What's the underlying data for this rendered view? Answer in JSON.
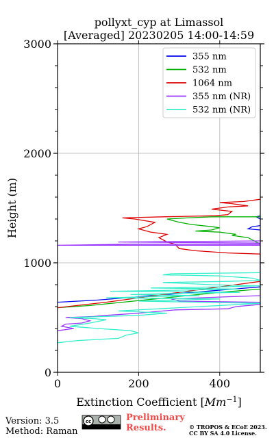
{
  "chart_data": {
    "type": "line",
    "title": "pollyxt_cyp at Limassol",
    "subtitle": "[Averaged] 20230205 14:00-14:59",
    "xlabel_base": "Extinction Coefficient [",
    "xlabel_unit_base": "Mm",
    "xlabel_unit_exp": "−1",
    "xlabel_close": "]",
    "ylabel": "Height (m)",
    "xlim": [
      0,
      500
    ],
    "ylim": [
      0,
      3000
    ],
    "x_ticks": [
      0,
      200,
      400
    ],
    "y_ticks": [
      0,
      1000,
      2000,
      3000
    ],
    "grid": true,
    "legend_position": "top-right",
    "series": [
      {
        "name": "355 nm",
        "color": "#0000ee",
        "points": [
          [
            0,
            640
          ],
          [
            100,
            660
          ],
          [
            200,
            690
          ],
          [
            300,
            720
          ],
          [
            400,
            750
          ],
          [
            500,
            780
          ],
          [
            500,
            1300
          ],
          [
            470,
            1310
          ],
          [
            480,
            1330
          ],
          [
            500,
            1340
          ],
          [
            500,
            1400
          ],
          [
            490,
            1420
          ],
          [
            500,
            1430
          ]
        ]
      },
      {
        "name": "532 nm",
        "color": "#00b000",
        "points": [
          [
            0,
            590
          ],
          [
            80,
            610
          ],
          [
            160,
            640
          ],
          [
            240,
            670
          ],
          [
            320,
            700
          ],
          [
            400,
            730
          ],
          [
            500,
            760
          ],
          [
            500,
            1170
          ],
          [
            470,
            1230
          ],
          [
            430,
            1250
          ],
          [
            440,
            1260
          ],
          [
            400,
            1280
          ],
          [
            340,
            1290
          ],
          [
            380,
            1300
          ],
          [
            400,
            1320
          ],
          [
            380,
            1330
          ],
          [
            330,
            1350
          ],
          [
            300,
            1370
          ],
          [
            270,
            1400
          ],
          [
            320,
            1410
          ],
          [
            380,
            1420
          ],
          [
            500,
            1420
          ]
        ]
      },
      {
        "name": "1064 nm",
        "color": "#dd0000",
        "points": [
          [
            0,
            590
          ],
          [
            120,
            640
          ],
          [
            240,
            700
          ],
          [
            360,
            760
          ],
          [
            440,
            800
          ],
          [
            500,
            830
          ],
          [
            500,
            880
          ],
          [
            500,
            1080
          ],
          [
            420,
            1090
          ],
          [
            340,
            1110
          ],
          [
            300,
            1130
          ],
          [
            290,
            1170
          ],
          [
            270,
            1190
          ],
          [
            250,
            1230
          ],
          [
            270,
            1260
          ],
          [
            230,
            1280
          ],
          [
            200,
            1310
          ],
          [
            220,
            1330
          ],
          [
            240,
            1370
          ],
          [
            190,
            1400
          ],
          [
            160,
            1410
          ],
          [
            260,
            1420
          ],
          [
            390,
            1430
          ],
          [
            420,
            1440
          ],
          [
            430,
            1470
          ],
          [
            380,
            1490
          ],
          [
            420,
            1510
          ],
          [
            470,
            1520
          ],
          [
            430,
            1540
          ],
          [
            400,
            1550
          ],
          [
            460,
            1560
          ],
          [
            500,
            1580
          ]
        ]
      },
      {
        "name": "355 nm (NR)",
        "color": "#9933ff",
        "points": [
          [
            0,
            380
          ],
          [
            40,
            400
          ],
          [
            10,
            420
          ],
          [
            20,
            440
          ],
          [
            60,
            450
          ],
          [
            80,
            470
          ],
          [
            60,
            490
          ],
          [
            20,
            500
          ],
          [
            90,
            510
          ],
          [
            120,
            520
          ],
          [
            200,
            540
          ],
          [
            260,
            560
          ],
          [
            290,
            570
          ],
          [
            420,
            580
          ],
          [
            440,
            600
          ],
          [
            500,
            620
          ],
          [
            500,
            640
          ],
          [
            300,
            650
          ],
          [
            280,
            670
          ],
          [
            420,
            690
          ],
          [
            500,
            700
          ],
          [
            500,
            1160
          ],
          [
            0,
            1160
          ],
          [
            180,
            1170
          ],
          [
            500,
            1170
          ],
          [
            500,
            1180
          ],
          [
            150,
            1190
          ],
          [
            500,
            1200
          ]
        ]
      },
      {
        "name": "532 nm (NR)",
        "color": "#33eecc",
        "points": [
          [
            0,
            270
          ],
          [
            50,
            290
          ],
          [
            100,
            300
          ],
          [
            150,
            310
          ],
          [
            170,
            340
          ],
          [
            200,
            360
          ],
          [
            180,
            380
          ],
          [
            100,
            400
          ],
          [
            30,
            420
          ],
          [
            80,
            450
          ],
          [
            120,
            480
          ],
          [
            90,
            490
          ],
          [
            30,
            500
          ],
          [
            120,
            510
          ],
          [
            200,
            520
          ],
          [
            270,
            540
          ],
          [
            150,
            560
          ],
          [
            250,
            580
          ],
          [
            350,
            600
          ],
          [
            450,
            620
          ],
          [
            500,
            630
          ],
          [
            350,
            640
          ],
          [
            200,
            650
          ],
          [
            300,
            660
          ],
          [
            400,
            670
          ],
          [
            120,
            680
          ],
          [
            220,
            690
          ],
          [
            350,
            700
          ],
          [
            180,
            710
          ],
          [
            280,
            720
          ],
          [
            450,
            730
          ],
          [
            130,
            740
          ],
          [
            300,
            750
          ],
          [
            450,
            760
          ],
          [
            230,
            770
          ],
          [
            400,
            780
          ],
          [
            500,
            790
          ],
          [
            380,
            800
          ],
          [
            260,
            820
          ],
          [
            420,
            830
          ],
          [
            500,
            840
          ],
          [
            480,
            860
          ],
          [
            400,
            880
          ],
          [
            260,
            890
          ],
          [
            280,
            900
          ],
          [
            500,
            910
          ]
        ]
      }
    ]
  },
  "footer": {
    "version": "Version: 3.5",
    "method": "Method: Raman",
    "prelim_line1": "Preliminary",
    "prelim_line2": "Results.",
    "copyright_line1": "© TROPOS & ECoE 2023.",
    "copyright_line2": "CC BY SA 4.0 License.",
    "license_badge": "cc-by-sa-badge"
  }
}
